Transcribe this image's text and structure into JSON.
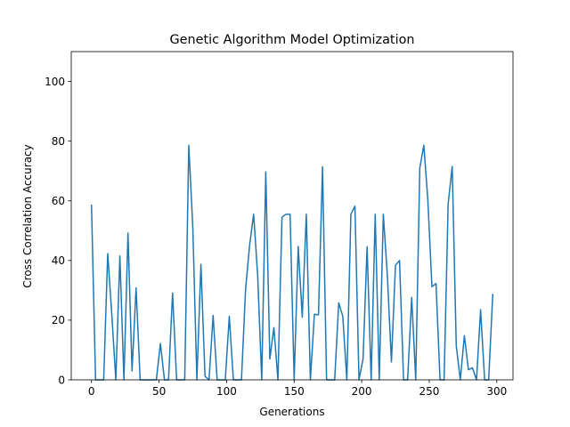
{
  "chart_data": {
    "type": "line",
    "title": "Genetic Algorithm Model Optimization",
    "xlabel": "Generations",
    "ylabel": "Cross Correlation Accuracy",
    "xlim": [
      -15,
      312
    ],
    "ylim": [
      0,
      110
    ],
    "xticks": [
      0,
      50,
      100,
      150,
      200,
      250,
      300
    ],
    "yticks": [
      0,
      20,
      40,
      60,
      80,
      100
    ],
    "grid": false,
    "series": [
      {
        "color": "#1f77b4",
        "x": [
          0,
          3,
          6,
          9,
          12,
          15,
          18,
          21,
          24,
          27,
          30,
          33,
          36,
          39,
          42,
          45,
          48,
          51,
          54,
          57,
          60,
          63,
          66,
          69,
          72,
          75,
          78,
          81,
          84,
          87,
          90,
          93,
          96,
          99,
          102,
          105,
          108,
          111,
          114,
          117,
          120,
          123,
          126,
          129,
          132,
          135,
          138,
          141,
          144,
          147,
          150,
          153,
          156,
          159,
          162,
          165,
          168,
          171,
          174,
          177,
          180,
          183,
          186,
          189,
          192,
          195,
          198,
          201,
          204,
          207,
          210,
          213,
          216,
          219,
          222,
          225,
          228,
          231,
          234,
          237,
          240,
          243,
          246,
          249,
          252,
          255,
          258,
          261,
          264,
          267,
          270,
          273,
          276,
          279,
          282,
          285,
          288,
          291,
          294,
          297
        ],
        "y": [
          58.5,
          0,
          0,
          0,
          42.3,
          22,
          0,
          41.5,
          0,
          49.2,
          3,
          30.8,
          0,
          0,
          0,
          0,
          0,
          12.2,
          0,
          0,
          29.1,
          0,
          0,
          0,
          78.6,
          51,
          0,
          38.7,
          1.2,
          0,
          21.6,
          0,
          0,
          0,
          21.3,
          0,
          0,
          0,
          30,
          45,
          55.5,
          35,
          0,
          69.7,
          7,
          17.5,
          0,
          54.5,
          55.5,
          55.5,
          0,
          44.7,
          21,
          55.5,
          0,
          22,
          21.8,
          71.4,
          0,
          0,
          0,
          25.8,
          21.3,
          0,
          55.5,
          58.2,
          0,
          7,
          44.6,
          0,
          55.5,
          0,
          55.5,
          35,
          6,
          38.4,
          40,
          0,
          0,
          27.6,
          0,
          70.9,
          78.6,
          60,
          31.2,
          32.3,
          0,
          0,
          59,
          71.5,
          11.4,
          0,
          14.8,
          3.4,
          4,
          0,
          23.5,
          0,
          0,
          28.6
        ]
      }
    ]
  }
}
